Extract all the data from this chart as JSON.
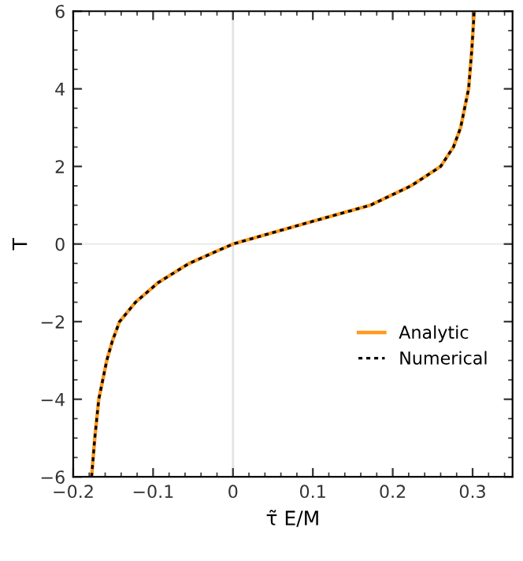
{
  "chart_data": {
    "type": "line",
    "xlabel": "τ̃ E/M",
    "ylabel": "T",
    "xlim": [
      -0.2,
      0.35
    ],
    "ylim": [
      -6,
      6
    ],
    "xticks": [
      {
        "value": -0.2,
        "label": "−0.2"
      },
      {
        "value": -0.1,
        "label": "−0.1"
      },
      0,
      0.1,
      0.2,
      0.3
    ],
    "yticks": [
      {
        "value": -6,
        "label": "−6"
      },
      {
        "value": -4,
        "label": "−4"
      },
      {
        "value": -2,
        "label": "−2"
      },
      0,
      2,
      4,
      6
    ],
    "grid": false,
    "legend": "bottom right",
    "ref_lines": [
      {
        "axis": "x",
        "value": 0,
        "color": "#e3e3e3"
      },
      {
        "axis": "y",
        "value": 0,
        "color": "#efefef"
      }
    ],
    "series": [
      {
        "name": "Analytic",
        "color": "#ff9a1f",
        "line_style": "solid",
        "x": [
          -0.177,
          -0.173,
          -0.168,
          -0.158,
          -0.151,
          -0.142,
          -0.122,
          -0.094,
          -0.055,
          0,
          0.085,
          0.172,
          0.223,
          0.26,
          0.276,
          0.285,
          0.295,
          0.299,
          0.302
        ],
        "values": [
          -6,
          -5,
          -4,
          -3,
          -2.5,
          -2,
          -1.5,
          -1,
          -0.5,
          0,
          0.5,
          1,
          1.5,
          2,
          2.5,
          3,
          4,
          5,
          6
        ]
      },
      {
        "name": "Numerical",
        "color": "#000000",
        "line_style": "dotted",
        "x": [
          -0.177,
          -0.173,
          -0.168,
          -0.158,
          -0.151,
          -0.142,
          -0.122,
          -0.094,
          -0.055,
          0,
          0.085,
          0.172,
          0.223,
          0.26,
          0.276,
          0.285,
          0.295,
          0.299,
          0.302
        ],
        "values": [
          -6,
          -5,
          -4,
          -3,
          -2.5,
          -2,
          -1.5,
          -1,
          -0.5,
          0,
          0.5,
          1,
          1.5,
          2,
          2.5,
          3,
          4,
          5,
          6
        ]
      }
    ]
  }
}
